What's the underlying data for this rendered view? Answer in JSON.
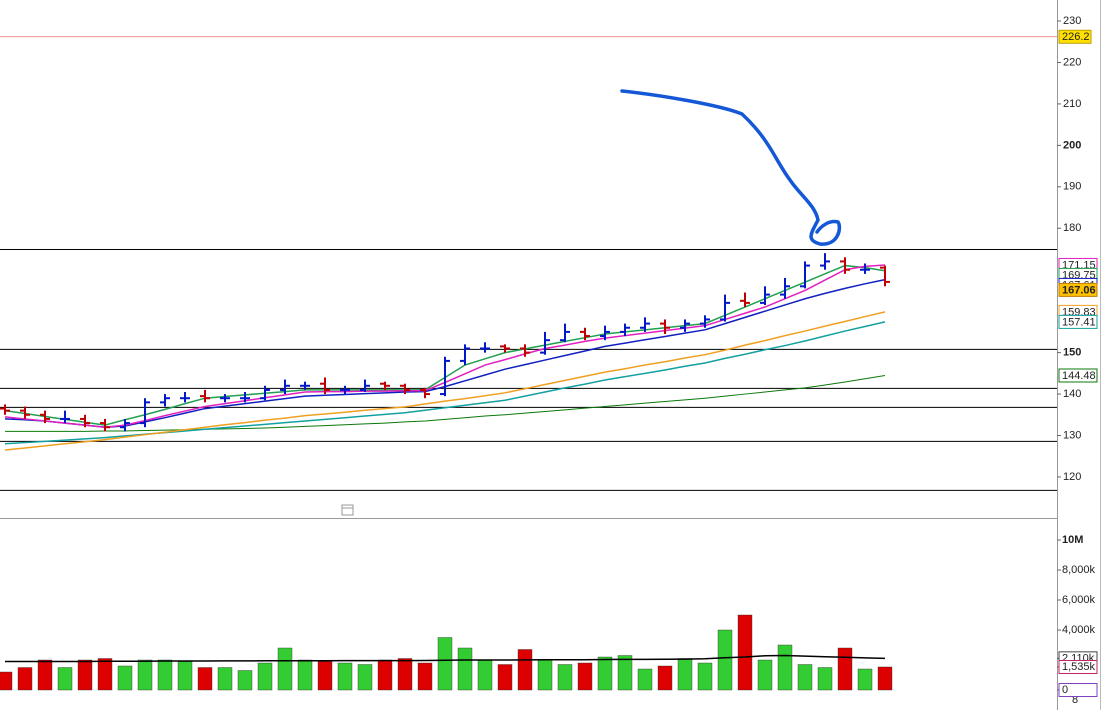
{
  "chart_data": [
    {
      "type": "ohlc",
      "up_color": "#0018c8",
      "down_color": "#c00000",
      "open": [
        136.5,
        136,
        135,
        134,
        134,
        133,
        132,
        133,
        138,
        139,
        139.5,
        139,
        139,
        139,
        141,
        142,
        142.5,
        141,
        141,
        142.5,
        142,
        141,
        140,
        148,
        151,
        151.5,
        151,
        150,
        153,
        155,
        154,
        155,
        156,
        157,
        156,
        157,
        158,
        162.5,
        162,
        164,
        166,
        171,
        172,
        170,
        170.5
      ],
      "high": [
        137.5,
        137,
        136,
        136,
        135,
        134,
        134,
        139,
        140,
        140.5,
        141,
        140,
        140.5,
        142,
        143.5,
        143,
        144,
        142,
        143.5,
        143,
        142.5,
        141.5,
        149,
        152,
        152.5,
        152,
        152,
        155,
        157,
        156,
        156.5,
        157,
        158.5,
        158,
        158,
        159,
        164,
        164.5,
        166,
        168,
        172,
        174,
        173,
        171.5,
        171
      ],
      "low": [
        135,
        134,
        133,
        133,
        132,
        131,
        131,
        132,
        137,
        138,
        138,
        138,
        138,
        138.5,
        140,
        141,
        140,
        140,
        140.5,
        141,
        140,
        139,
        139.5,
        147,
        150,
        150,
        149,
        149.5,
        152.5,
        153,
        153,
        154,
        155,
        154.5,
        155,
        156,
        157.5,
        161,
        161.5,
        163,
        165.5,
        170,
        169,
        169,
        166
      ],
      "close": [
        136,
        135,
        134,
        134,
        133,
        132,
        133,
        138,
        139,
        139,
        139,
        139,
        139,
        141,
        142,
        142,
        141,
        141,
        142,
        142,
        141,
        140,
        148,
        151,
        151,
        151,
        150,
        153,
        155,
        154,
        155,
        156,
        157,
        156,
        157,
        158,
        162,
        162,
        164,
        166,
        171,
        172,
        170,
        170,
        167.06
      ],
      "series": [
        {
          "color": "#0a7a0a",
          "width": 1,
          "values": [
            131,
            131,
            131,
            131,
            131,
            131.1,
            131.1,
            131.2,
            131.3,
            131.4,
            131.5,
            131.6,
            131.7,
            131.8,
            132,
            132.2,
            132.4,
            132.6,
            132.8,
            133,
            133.3,
            133.5,
            133.9,
            134.3,
            134.7,
            135,
            135.4,
            135.8,
            136.2,
            136.6,
            137,
            137.4,
            137.8,
            138.2,
            138.6,
            139,
            139.5,
            140,
            140.5,
            141,
            141.5,
            142.2,
            142.9,
            143.7,
            144.48
          ]
        },
        {
          "color": "#12a0a0",
          "width": 1.5,
          "values": [
            128,
            128.3,
            128.6,
            128.9,
            129.2,
            129.5,
            129.9,
            130.3,
            130.7,
            131.1,
            131.5,
            131.9,
            132.3,
            132.7,
            133.1,
            133.5,
            133.9,
            134.3,
            134.7,
            135.1,
            135.5,
            136.1,
            136.7,
            137.3,
            137.9,
            138.5,
            139.5,
            140.5,
            141.5,
            142.4,
            143.4,
            144.2,
            145,
            145.8,
            146.7,
            147.5,
            148.6,
            149.6,
            150.7,
            151.7,
            152.8,
            154,
            155.2,
            156.3,
            157.41
          ]
        },
        {
          "color": "#f0a020",
          "width": 1.5,
          "values": [
            126.5,
            127,
            127.5,
            128,
            128.5,
            129,
            129.6,
            130.2,
            130.8,
            131.4,
            132,
            132.6,
            133.1,
            133.7,
            134.2,
            134.8,
            135.2,
            135.6,
            136.1,
            136.5,
            136.9,
            137.6,
            138.3,
            138.9,
            139.6,
            140.3,
            141.3,
            142.3,
            143.3,
            144.3,
            145.3,
            146.1,
            147,
            147.8,
            148.7,
            149.5,
            150.6,
            151.8,
            152.9,
            154.1,
            155.2,
            156.4,
            157.5,
            158.7,
            159.83
          ]
        },
        {
          "color": "#1020c0",
          "width": 1.5,
          "values": [
            134,
            133.8,
            133.5,
            133,
            132.5,
            132,
            132.3,
            133.3,
            134.3,
            135.4,
            136.5,
            137.1,
            137.7,
            138.3,
            138.9,
            139.5,
            139.7,
            139.9,
            140.1,
            140.3,
            140.5,
            140.6,
            141.8,
            143.2,
            144.6,
            146,
            147.1,
            148.2,
            149.3,
            150.4,
            151.5,
            152.3,
            153.1,
            153.9,
            154.7,
            155.5,
            157,
            158.5,
            160,
            161.5,
            163,
            164.3,
            165.5,
            166.6,
            167.61
          ]
        },
        {
          "color": "#20a050",
          "width": 1.5,
          "values": [
            136,
            135.3,
            134.6,
            133.9,
            133.2,
            132.5,
            133.8,
            135,
            136.3,
            137.7,
            139,
            139.4,
            139.8,
            140.2,
            140.6,
            141,
            141,
            141,
            141,
            141,
            141,
            141,
            144,
            147,
            148.5,
            150,
            150.9,
            151.8,
            152.7,
            153.6,
            154.5,
            155,
            155.5,
            156,
            156.5,
            157,
            159,
            161,
            163,
            165,
            167,
            169,
            171,
            170.5,
            169.75
          ]
        },
        {
          "color": "#e020c0",
          "width": 1.5,
          "values": [
            134.5,
            134,
            133.5,
            133,
            132.5,
            132,
            132.5,
            133.6,
            134.8,
            135.9,
            137,
            137.7,
            138.4,
            139.1,
            139.8,
            140.5,
            140.6,
            140.6,
            140.7,
            140.7,
            140.8,
            140.8,
            142.8,
            144.9,
            147,
            148.3,
            149.7,
            151,
            151.8,
            152.7,
            153.5,
            154.1,
            154.7,
            155.3,
            155.9,
            156.5,
            158,
            159.5,
            161,
            163,
            165,
            167.5,
            170,
            170.8,
            171.15
          ]
        }
      ],
      "hlines": [
        175,
        150.9,
        141.5,
        136.9,
        128.7,
        116.9
      ],
      "ref_line": {
        "value": 226.2,
        "color": "#e07070"
      },
      "ylim": [
        110.1,
        235.07
      ],
      "yticks": [
        230,
        220,
        210,
        200,
        190,
        180,
        150,
        140,
        130,
        120
      ]
    },
    {
      "type": "bar",
      "up_color": "#33cc33",
      "down_color": "#dd0000",
      "values": [
        1200,
        1500,
        2000,
        1500,
        2000,
        2100,
        1600,
        2000,
        2000,
        1900,
        1500,
        1500,
        1300,
        1800,
        2800,
        2000,
        1900,
        1800,
        1700,
        2000,
        2100,
        1800,
        3500,
        2800,
        2000,
        1700,
        2700,
        2000,
        1700,
        1800,
        2200,
        2300,
        1400,
        1600,
        2100,
        1800,
        4000,
        5000,
        2000,
        3000,
        1700,
        1500,
        2800,
        1400,
        1535
      ],
      "series": [
        {
          "color": "#000000",
          "values": [
            1900,
            1900,
            1900,
            1900,
            1900,
            1920,
            1920,
            1920,
            1930,
            1930,
            1930,
            1940,
            1940,
            1950,
            1950,
            1950,
            1950,
            1960,
            1960,
            1960,
            1960,
            1970,
            1980,
            2000,
            2000,
            2000,
            2010,
            2020,
            2020,
            2020,
            2030,
            2040,
            2040,
            2050,
            2060,
            2080,
            2150,
            2200,
            2280,
            2300,
            2260,
            2220,
            2180,
            2140,
            2110
          ]
        }
      ],
      "ylim": [
        0,
        11333
      ],
      "yticks": [
        {
          "value": 10000,
          "label": "10M"
        },
        {
          "value": 8000,
          "label": "8,000k"
        },
        {
          "value": 6000,
          "label": "6,000k"
        },
        {
          "value": 4000,
          "label": "4,000k"
        },
        {
          "value": 2110,
          "label": "2,110k"
        },
        {
          "value": 1535,
          "label": "1,535k"
        },
        0
      ],
      "axis_footer": "8"
    }
  ]
}
